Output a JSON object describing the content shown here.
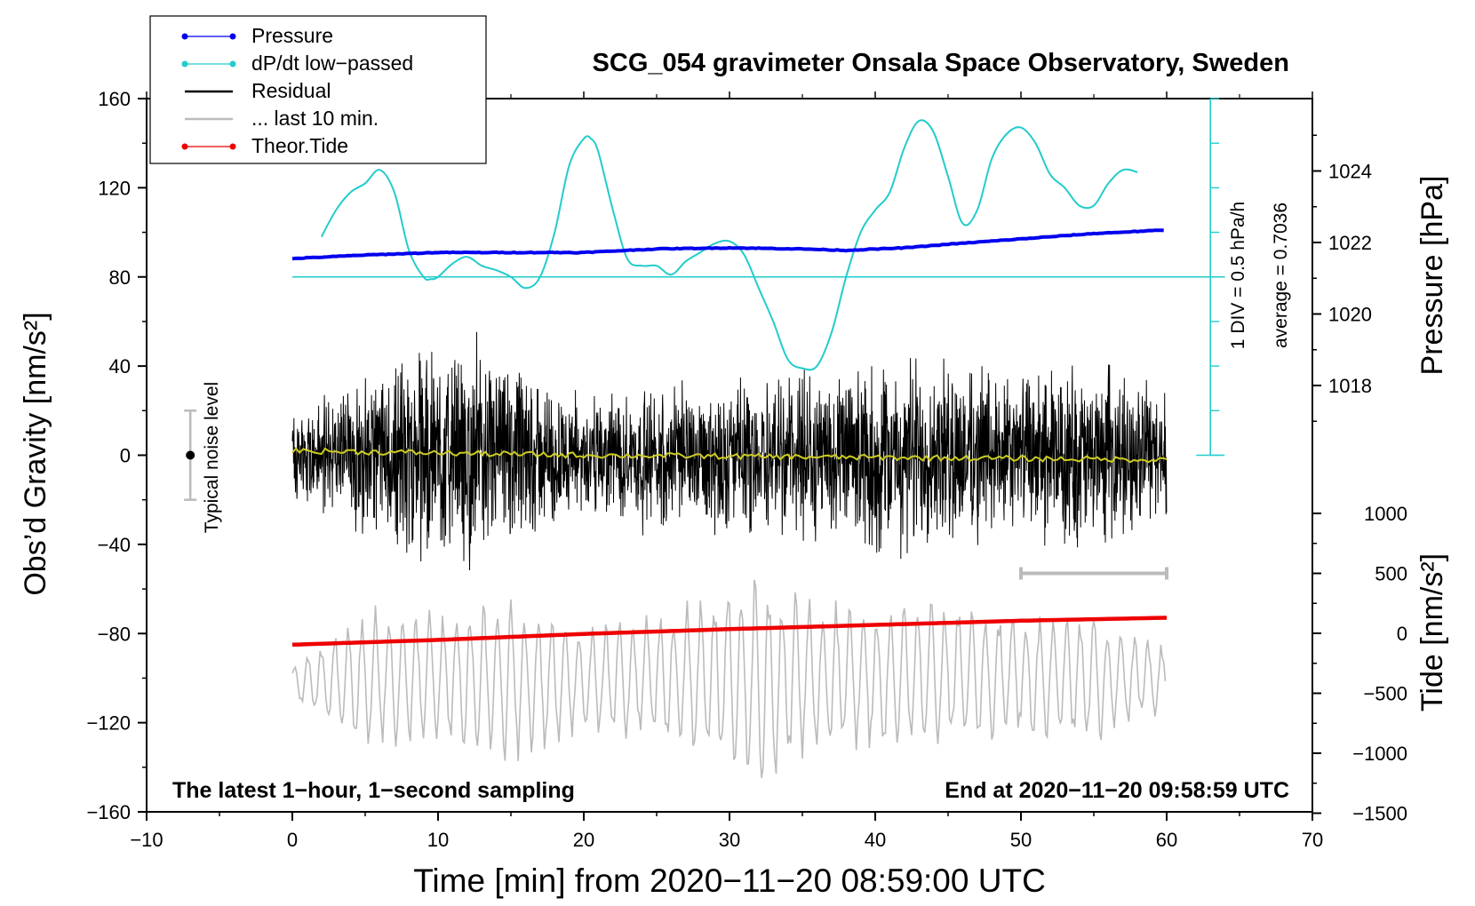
{
  "chart_data": {
    "type": "line",
    "title": "SCG_054 gravimeter Onsala Space Observatory, Sweden",
    "xlabel": "Time [min] from 2020−11−20 08:59:00 UTC",
    "ylabel_left": "Obs’d Gravity [nm/s²]",
    "ylabel_pressure": "Pressure [hPa]",
    "ylabel_tide": "Tide [nm/s²]",
    "xlim": [
      -10,
      70
    ],
    "ylim_gravity": [
      -160,
      160
    ],
    "ylim_pressure": [
      1016,
      1026
    ],
    "ylim_tide": [
      -1500,
      1500
    ],
    "x_ticks": [
      -10,
      0,
      10,
      20,
      30,
      40,
      50,
      60,
      70
    ],
    "x_tick_labels": [
      "−10",
      "0",
      "10",
      "20",
      "30",
      "40",
      "50",
      "60",
      "70"
    ],
    "gravity_ticks": [
      160,
      120,
      80,
      40,
      0,
      -40,
      -80,
      -120,
      -160
    ],
    "gravity_tick_labels": [
      "160",
      "120",
      "80",
      "40",
      "0",
      "−40",
      "−80",
      "−120",
      "−160"
    ],
    "pressure_ticks": [
      1024,
      1022,
      1020,
      1018
    ],
    "pressure_tick_labels": [
      "1024",
      "1022",
      "1020",
      "1018"
    ],
    "tide_ticks": [
      1000,
      500,
      0,
      -500,
      -1000,
      -1500
    ],
    "tide_tick_labels": [
      "1000",
      "500",
      "0",
      "−500",
      "−1000",
      "−1500"
    ],
    "legend": {
      "position": "top-left",
      "entries": [
        {
          "label": "Pressure",
          "color": "#0000ee",
          "marker": true
        },
        {
          "label": "dP/dt low−passed",
          "color": "#22cccc",
          "marker": true
        },
        {
          "label": "Residual",
          "color": "#000000",
          "marker": false
        },
        {
          "label": "... last 10 min.",
          "color": "#bbbbbb",
          "marker": false
        },
        {
          "label": "Theor.Tide",
          "color": "#ee0000",
          "marker": true
        }
      ]
    },
    "noise_level": {
      "label": "Typical noise level",
      "x": -7,
      "center": 0,
      "half_range": 20
    },
    "dpdt_scale": {
      "div_label": "1 DIV = 0.5 hPa/h",
      "average_label": "average = 0.7036",
      "x": 63,
      "baseline_gravity": 80,
      "axis_bottom_gravity": 0,
      "axis_top_gravity": 160,
      "ticks": 8
    },
    "range_bar": {
      "x_start": 50,
      "x_end": 60,
      "gravity": -53
    },
    "bottom_left_note": "The latest 1−hour, 1−second sampling",
    "bottom_right_note": "End at 2020−11−20 09:58:59 UTC",
    "series": [
      {
        "name": "Pressure",
        "axis": "pressure",
        "color": "#0000ee",
        "x": [
          0,
          5,
          10,
          15,
          20,
          25,
          30,
          35,
          38,
          42,
          45,
          50,
          55,
          60
        ],
        "values": [
          1021.55,
          1021.65,
          1021.72,
          1021.72,
          1021.72,
          1021.82,
          1021.85,
          1021.82,
          1021.78,
          1021.85,
          1021.95,
          1022.1,
          1022.25,
          1022.35
        ]
      },
      {
        "name": "dP/dt low-passed",
        "axis": "gravity",
        "color": "#22cccc",
        "x": [
          2,
          3,
          4,
          5,
          6,
          7,
          8,
          9,
          9.5,
          10,
          11,
          12,
          13,
          14,
          15,
          16,
          17,
          18,
          19,
          20,
          20.5,
          21,
          22,
          23,
          24,
          25,
          26,
          27,
          28,
          29,
          30,
          31,
          32,
          33,
          34,
          35,
          36,
          37,
          38,
          39,
          40,
          41,
          42,
          43,
          44,
          45,
          46,
          47,
          48,
          49,
          50,
          51,
          52,
          53,
          54,
          55,
          56,
          57,
          58
        ],
        "values": [
          98,
          110,
          118,
          122,
          128,
          118,
          92,
          80,
          79,
          80,
          86,
          89,
          85,
          83,
          80,
          75,
          80,
          100,
          130,
          142,
          142,
          136,
          110,
          88,
          85,
          85,
          81,
          87,
          91,
          95,
          96,
          90,
          75,
          60,
          43,
          39,
          40,
          55,
          80,
          100,
          110,
          118,
          138,
          150,
          145,
          125,
          104,
          110,
          133,
          144,
          147,
          140,
          126,
          120,
          112,
          112,
          122,
          128,
          127
        ]
      },
      {
        "name": "Residual",
        "axis": "gravity",
        "color": "#000000",
        "x": [
          0,
          5,
          9,
          14,
          20,
          26,
          32,
          35,
          37,
          43,
          50,
          55,
          60
        ],
        "envelope": [
          22,
          40,
          55,
          48,
          30,
          35,
          40,
          45,
          42,
          50,
          40,
          45,
          35
        ]
      },
      {
        "name": "... last 10 min.",
        "axis": "gravity",
        "color": "#bbbbbb",
        "x": [
          0,
          5,
          10,
          15,
          20,
          25,
          30,
          32,
          35,
          40,
          45,
          50,
          55,
          60
        ],
        "center": [
          -102,
          -101,
          -99,
          -101,
          -102,
          -100,
          -100,
          -102,
          -101,
          -100,
          -99,
          -99,
          -100,
          -100
        ],
        "amplitude": [
          8,
          35,
          30,
          40,
          25,
          30,
          45,
          50,
          40,
          35,
          35,
          30,
          30,
          15
        ]
      },
      {
        "name": "Theor.Tide",
        "axis": "tide",
        "color": "#ee0000",
        "x": [
          0,
          10,
          20,
          30,
          40,
          50,
          60
        ],
        "values": [
          -95,
          -55,
          -5,
          35,
          70,
          105,
          130
        ]
      },
      {
        "name": "Residual smoothed",
        "axis": "gravity",
        "color": "#cccc22",
        "x": [
          0,
          10,
          20,
          30,
          40,
          50,
          60
        ],
        "values": [
          2,
          1,
          0,
          -0.5,
          -1,
          -1.5,
          -2
        ]
      }
    ]
  }
}
